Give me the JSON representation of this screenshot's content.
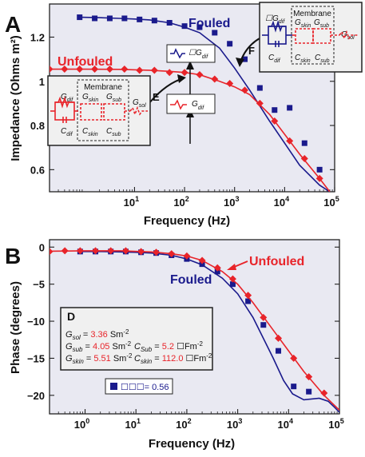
{
  "colors": {
    "fouled": "#1a1a8c",
    "unfouled": "#e8242a",
    "plot_bg": "#e9e9f2",
    "box_bg": "#f0f0f0"
  },
  "chart_data": [
    {
      "panel_label": "A",
      "type": "line",
      "xscale": "log",
      "xlim": [
        0.2,
        100000
      ],
      "ylim": [
        0.5,
        1.35
      ],
      "xlabel": "Frequency (Hz)",
      "ylabel": "Impedance (Ohms m²)",
      "xticks": [
        {
          "v": 10,
          "base": "10",
          "exp": "1"
        },
        {
          "v": 100,
          "base": "10",
          "exp": "2"
        },
        {
          "v": 1000,
          "base": "10",
          "exp": "3"
        },
        {
          "v": 10000,
          "base": "10",
          "exp": "4"
        },
        {
          "v": 100000,
          "base": "10",
          "exp": "5"
        }
      ],
      "yticks": [
        {
          "v": 0.6,
          "label": "0.6"
        },
        {
          "v": 0.8,
          "label": "0.8"
        },
        {
          "v": 1.0,
          "label": "1"
        },
        {
          "v": 1.2,
          "label": "1.2"
        }
      ],
      "series": [
        {
          "name": "Fouled",
          "color": "#1a1a8c",
          "marker": "square",
          "x": [
            0.8,
            1.6,
            3.2,
            6.3,
            12.6,
            25,
            50,
            100,
            200,
            400,
            800,
            1600,
            3200,
            6300,
            12600,
            25000,
            50000
          ],
          "y": [
            1.29,
            1.285,
            1.285,
            1.285,
            1.28,
            1.275,
            1.265,
            1.25,
            1.245,
            1.22,
            1.17,
            1.1,
            0.97,
            0.87,
            0.88,
            0.72,
            0.6
          ],
          "fit_x": [
            0.8,
            2,
            5,
            10,
            20,
            50,
            100,
            200,
            500,
            1000,
            2000,
            5000,
            10000,
            20000,
            50000,
            80000
          ],
          "fit_y": [
            1.29,
            1.288,
            1.285,
            1.282,
            1.278,
            1.265,
            1.245,
            1.22,
            1.15,
            1.06,
            0.96,
            0.82,
            0.72,
            0.62,
            0.53,
            0.5
          ]
        },
        {
          "name": "Unfouled",
          "color": "#e8242a",
          "marker": "diamond",
          "x": [
            0.2,
            0.4,
            0.8,
            1.6,
            3.2,
            6.3,
            12.6,
            25,
            50,
            100,
            200,
            400,
            800,
            1600,
            3200,
            6300,
            12600,
            25000,
            50000
          ],
          "y": [
            1.055,
            1.055,
            1.055,
            1.055,
            1.055,
            1.055,
            1.05,
            1.05,
            1.04,
            1.04,
            1.03,
            1.01,
            0.99,
            0.96,
            0.9,
            0.82,
            0.73,
            0.65,
            0.56
          ],
          "fit_x": [
            0.2,
            1,
            5,
            20,
            50,
            100,
            200,
            500,
            1000,
            2000,
            5000,
            10000,
            20000,
            50000,
            80000
          ],
          "fit_y": [
            1.055,
            1.055,
            1.054,
            1.05,
            1.045,
            1.04,
            1.03,
            1.0,
            0.975,
            0.94,
            0.85,
            0.76,
            0.67,
            0.56,
            0.5
          ]
        }
      ],
      "annotations": {
        "fouled_label": "Fouled",
        "unfouled_label": "Unfouled",
        "callout_e": "E",
        "callout_f": "F",
        "box_gdif_small": "☐G",
        "box_gdif_small_sub": "dif",
        "box_gdif": "G",
        "box_gdif_sub": "dif"
      },
      "inset_fouled": {
        "membrane": "Membrane",
        "g_dif": "☐G",
        "g_dif_sub": "dif",
        "g_skin": "G",
        "g_skin_sub": "skin",
        "g_sub": "G",
        "g_sub_sub": "sub",
        "g_sol": "G",
        "g_sol_sub": "sol",
        "c_dif": "C",
        "c_dif_sub": "dif",
        "c_skin": "C",
        "c_skin_sub": "skin",
        "c_sub": "C",
        "c_sub_sub": "sub"
      },
      "inset_unfouled": {
        "membrane": "Membrane",
        "g_dif": "G",
        "g_dif_sub": "dif",
        "g_skin": "G",
        "g_skin_sub": "skin",
        "g_sub": "G",
        "g_sub_sub": "sub",
        "g_sol": "G",
        "g_sol_sub": "sol",
        "c_dif": "C",
        "c_dif_sub": "dif",
        "c_skin": "C",
        "c_skin_sub": "skin",
        "c_sub": "C",
        "c_sub_sub": "sub"
      }
    },
    {
      "panel_label": "B",
      "type": "line",
      "xscale": "log",
      "xlim": [
        0.2,
        100000
      ],
      "ylim": [
        -22.5,
        1
      ],
      "xlabel": "Frequency (Hz)",
      "ylabel": "Phase (degrees)",
      "xticks": [
        {
          "v": 1,
          "base": "10",
          "exp": "0"
        },
        {
          "v": 10,
          "base": "10",
          "exp": "1"
        },
        {
          "v": 100,
          "base": "10",
          "exp": "2"
        },
        {
          "v": 1000,
          "base": "10",
          "exp": "3"
        },
        {
          "v": 10000,
          "base": "10",
          "exp": "4"
        },
        {
          "v": 100000,
          "base": "10",
          "exp": "5"
        }
      ],
      "yticks": [
        {
          "v": 0,
          "label": "0"
        },
        {
          "v": -5,
          "label": "−5"
        },
        {
          "v": -10,
          "label": "−10"
        },
        {
          "v": -15,
          "label": "−15"
        },
        {
          "v": -20,
          "label": "−20"
        }
      ],
      "series": [
        {
          "name": "Fouled",
          "color": "#1a1a8c",
          "marker": "square",
          "x": [
            0.8,
            1.6,
            3.2,
            6.3,
            12.6,
            25,
            50,
            100,
            200,
            400,
            800,
            1600,
            3200,
            6300,
            12600,
            25000
          ],
          "y": [
            -0.6,
            -0.6,
            -0.6,
            -0.6,
            -0.7,
            -0.8,
            -1.1,
            -1.6,
            -2.3,
            -3.3,
            -5.0,
            -7.3,
            -10.5,
            -14.0,
            -18.8,
            -19.5
          ],
          "fit_x": [
            0.8,
            2,
            5,
            10,
            20,
            50,
            100,
            200,
            500,
            1000,
            2000,
            5000,
            8000,
            12000,
            20000,
            40000,
            60000,
            80000,
            100000
          ],
          "fit_y": [
            -0.6,
            -0.6,
            -0.65,
            -0.7,
            -0.8,
            -1.1,
            -1.6,
            -2.4,
            -4.2,
            -6.3,
            -9.5,
            -15.0,
            -18.0,
            -19.8,
            -20.6,
            -20.4,
            -20.8,
            -21.6,
            -22.3
          ]
        },
        {
          "name": "Unfouled",
          "color": "#e8242a",
          "marker": "diamond",
          "x": [
            0.2,
            0.4,
            0.8,
            1.6,
            3.2,
            6.3,
            12.6,
            25,
            50,
            100,
            200,
            400,
            800,
            1600,
            3200,
            6300,
            12600,
            25000,
            50000
          ],
          "y": [
            -0.6,
            -0.5,
            -0.5,
            -0.5,
            -0.5,
            -0.5,
            -0.6,
            -0.7,
            -0.9,
            -1.2,
            -1.8,
            -2.8,
            -4.3,
            -6.5,
            -9.5,
            -12.3,
            -15.0,
            -17.5,
            -19.7
          ],
          "fit_x": [
            0.2,
            1,
            5,
            20,
            50,
            100,
            200,
            500,
            1000,
            2000,
            5000,
            10000,
            20000,
            50000,
            100000
          ],
          "fit_y": [
            -0.55,
            -0.5,
            -0.5,
            -0.65,
            -0.9,
            -1.2,
            -1.8,
            -3.3,
            -5.0,
            -7.5,
            -11.2,
            -14.0,
            -16.8,
            -20.0,
            -22.0
          ]
        }
      ],
      "annotations": {
        "unfouled_label": "Unfouled",
        "fouled_label": "Fouled"
      },
      "info_box": {
        "title": "D",
        "rows": [
          {
            "name": "G",
            "sub": "sol",
            "eq": "=",
            "value": "3.36",
            "unit": "Sm",
            "exp": "-2"
          },
          {
            "name": "G",
            "sub": "sub",
            "eq": "=",
            "value": "4.05",
            "unit": "Sm",
            "exp": "-2"
          },
          {
            "name": "G",
            "sub": "skin",
            "eq": "=",
            "value": "5.51",
            "unit": "Sm",
            "exp": "-2"
          }
        ],
        "rows_right": [
          {
            "name": "C",
            "sub": "Sub",
            "eq": "=",
            "value": "5.2",
            "unit": "☐Fm",
            "exp": "-2"
          },
          {
            "name": "C",
            "sub": "skin",
            "eq": "=",
            "value": "112.0",
            "unit": "☐Fm",
            "exp": "-2"
          }
        ]
      },
      "legend_box": {
        "text": "☐☐☐= 0.56"
      }
    }
  ]
}
